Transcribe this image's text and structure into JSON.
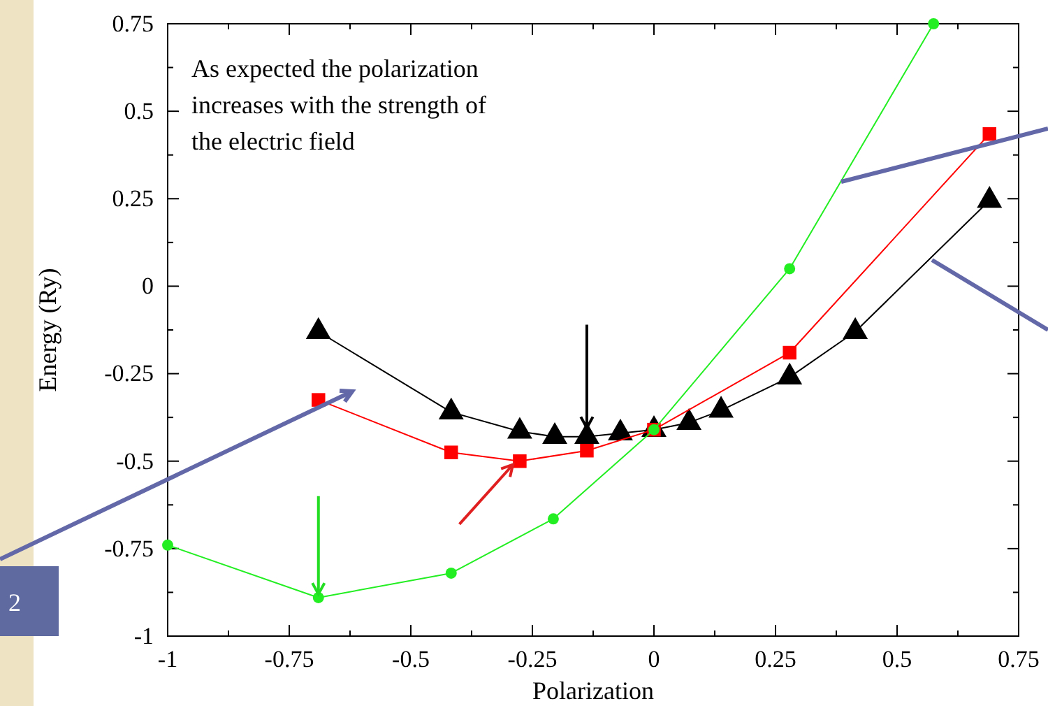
{
  "chart_data": {
    "type": "line",
    "xlabel": "Polarization",
    "ylabel": "Energy (Ry)",
    "xlim": [
      -1,
      0.75
    ],
    "ylim": [
      -1,
      0.75
    ],
    "xticks": [
      -1,
      -0.75,
      -0.5,
      -0.25,
      0,
      0.25,
      0.5,
      0.75
    ],
    "yticks": [
      -1,
      -0.75,
      -0.5,
      -0.25,
      0,
      0.25,
      0.5,
      0.75
    ],
    "grid": false,
    "line_style": "solid",
    "annotations": [
      "As expected the polarization increases with the strength of the electric field",
      "2"
    ],
    "series": [
      {
        "color": "#000000",
        "marker": "triangle",
        "x": [
          -0.69,
          -0.417,
          -0.276,
          -0.204,
          -0.138,
          -0.069,
          0,
          0.072,
          0.138,
          0.279,
          0.414,
          0.69
        ],
        "values": [
          -0.13,
          -0.36,
          -0.415,
          -0.43,
          -0.43,
          -0.42,
          -0.41,
          -0.39,
          -0.355,
          -0.26,
          -0.13,
          0.245
        ]
      },
      {
        "color": "#ff0000",
        "marker": "square",
        "x": [
          -0.69,
          -0.417,
          -0.276,
          -0.138,
          0,
          0.279,
          0.69
        ],
        "values": [
          -0.325,
          -0.475,
          -0.5,
          -0.47,
          -0.41,
          -0.19,
          0.435
        ]
      },
      {
        "color": "#22ee22",
        "marker": "circle",
        "x": [
          -1,
          -0.69,
          -0.417,
          -0.207,
          0,
          0.279,
          0.575
        ],
        "values": [
          -0.74,
          -0.89,
          -0.82,
          -0.665,
          -0.41,
          0.05,
          0.75
        ]
      }
    ]
  }
}
